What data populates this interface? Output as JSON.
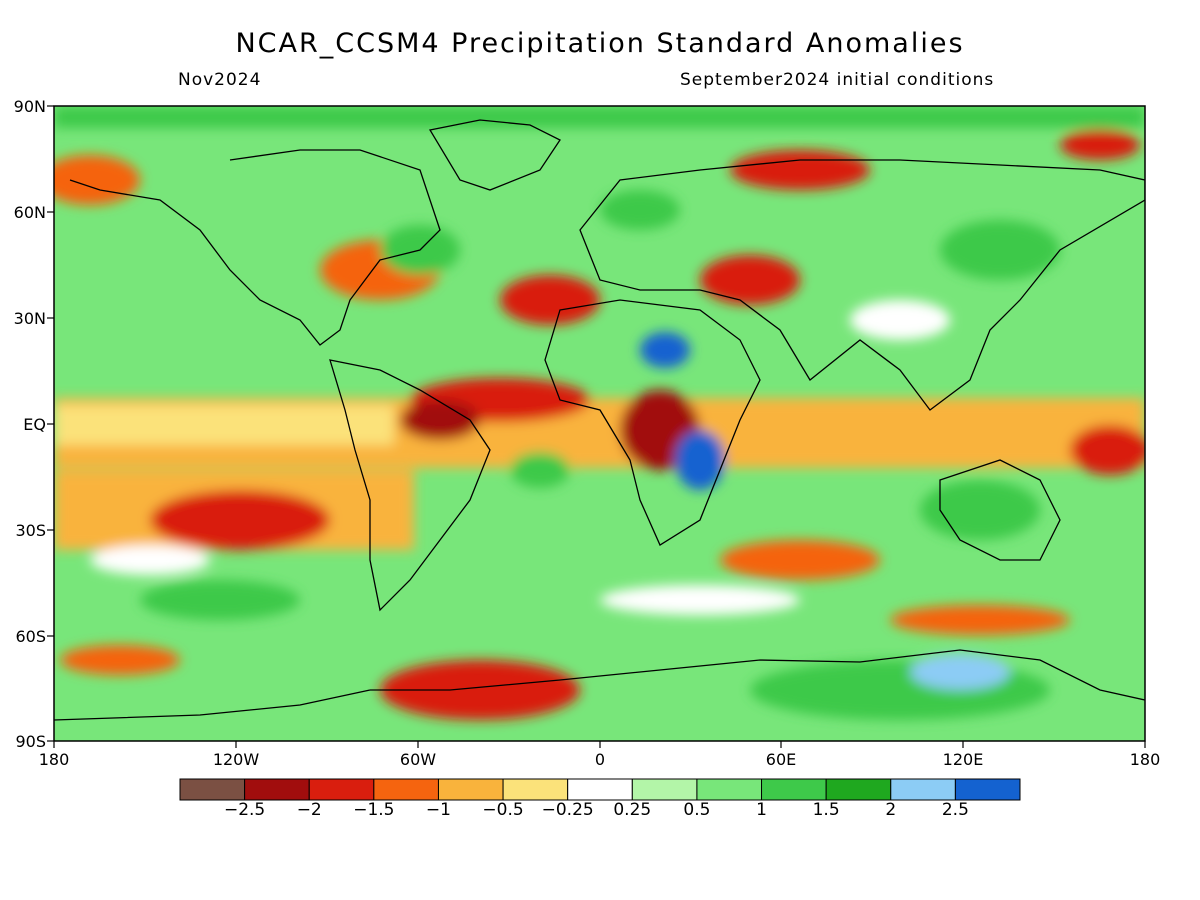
{
  "title": "NCAR_CCSM4 Precipitation Standard Anomalies",
  "valid_month": "Nov2024",
  "initial_conditions": "September2024 initial conditions",
  "lat_labels": [
    "90N",
    "60N",
    "30N",
    "EQ",
    "30S",
    "60S",
    "90S"
  ],
  "lon_labels": [
    "180",
    "120W",
    "60W",
    "0",
    "60E",
    "120E",
    "180"
  ],
  "colorbar": {
    "colors": [
      "#7b5043",
      "#a10d0d",
      "#d91e0e",
      "#f5640f",
      "#f9b33c",
      "#fbe27a",
      "#ffffff",
      "#b3f5a8",
      "#78e67a",
      "#3ec94a",
      "#1fa81f",
      "#8cccf5",
      "#1462d0"
    ],
    "labels": [
      "-2.5",
      "-2",
      "-1.5",
      "-1",
      "-0.5",
      "-0.25",
      "0.25",
      "0.5",
      "1",
      "1.5",
      "2",
      "2.5"
    ]
  }
}
